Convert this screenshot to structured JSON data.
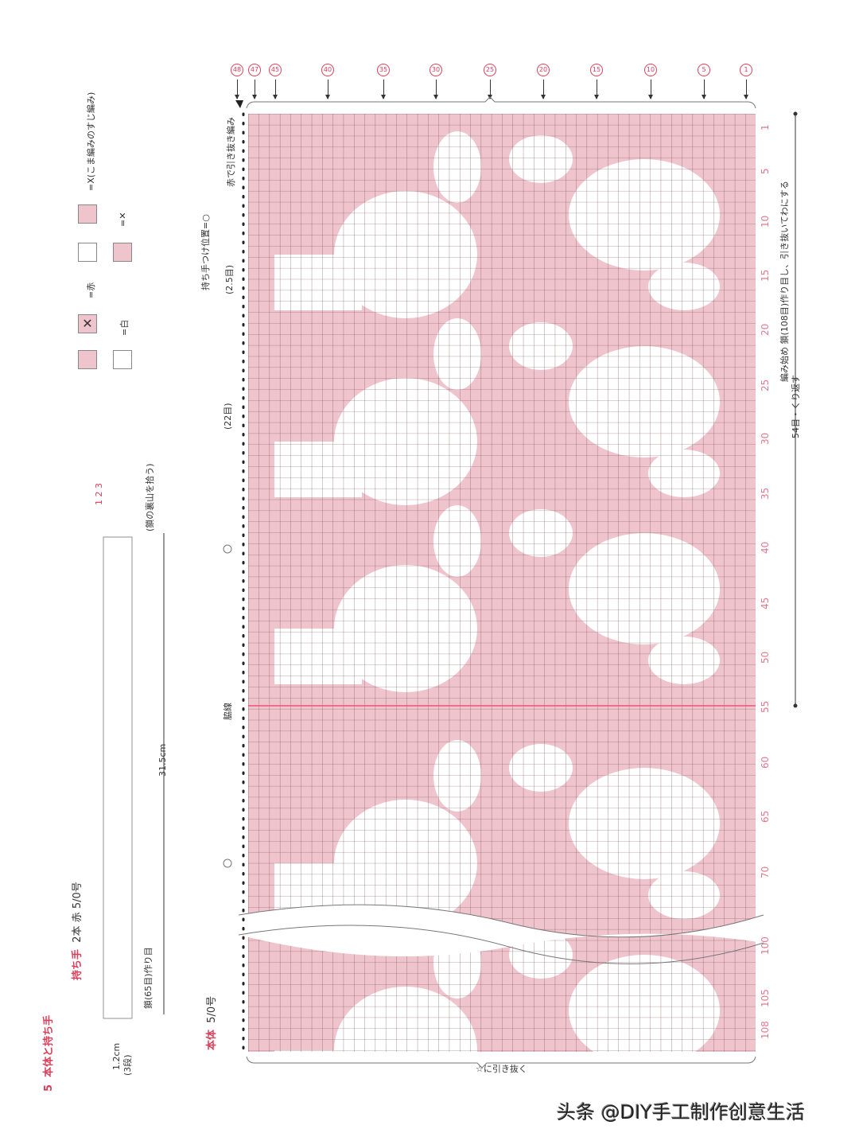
{
  "header": {
    "section_number": "5",
    "section_title": "本体と持ち手"
  },
  "legend": {
    "red_label": "=赤",
    "white_label": "=白",
    "single_crochet_back_loop": "=X(こま編みのすじ編み)",
    "colors": {
      "red": "#f0c4cc",
      "white": "#ffffff"
    }
  },
  "handle": {
    "title": "持ち手",
    "spec": "2本 赤 5/0号",
    "chain_note": "鎖(65目)作り目",
    "back_bump_note": "(鎖の裏山を拾う)",
    "length": "31.5cm",
    "height": "1.2cm",
    "rows": "(3段)",
    "row_marks": [
      "1",
      "2",
      "3"
    ]
  },
  "body": {
    "title": "本体",
    "hook": "5/0号",
    "slip_note": "赤で引き抜き編み",
    "handle_position": "持ち手つけ位置=○",
    "handle_width": "(2.5目)",
    "gap": "(22目)",
    "side_line": "脇線",
    "start_note": "編み始め 鎖(108目)作り目し、引き抜いてわにする",
    "repeat_note": "54目・くり返す",
    "bottom_note": "☆に引き抜く",
    "column_labels": [
      "48",
      "47",
      "45",
      "40",
      "35",
      "30",
      "25",
      "20",
      "15",
      "10",
      "5",
      "1"
    ],
    "row_labels": [
      "1",
      "5",
      "10",
      "15",
      "20",
      "25",
      "30",
      "35",
      "40",
      "45",
      "50",
      "55",
      "60",
      "65",
      "70",
      "100",
      "105",
      "108"
    ],
    "total_rows": 108,
    "total_columns": 48
  },
  "watermark": "头条 @DIY手工制作创意生活"
}
